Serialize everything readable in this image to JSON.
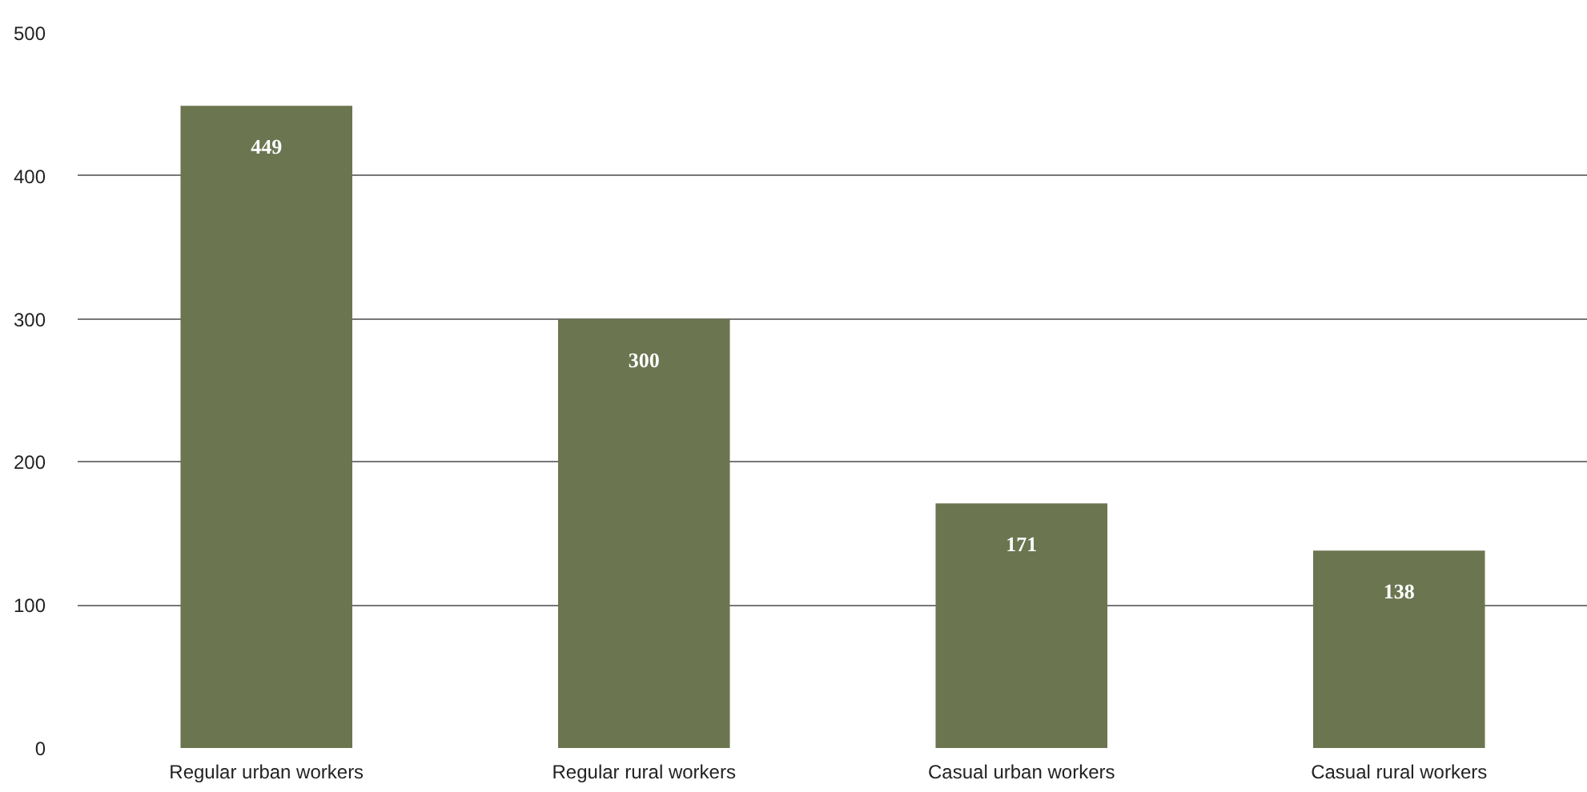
{
  "chart_data": {
    "type": "bar",
    "categories": [
      "Regular urban workers",
      "Regular rural workers",
      "Casual urban workers",
      "Casual rural workers"
    ],
    "values": [
      449,
      300,
      171,
      138
    ],
    "color": "#6b7550",
    "ylim": [
      0,
      500
    ],
    "yticks": [
      0,
      100,
      200,
      300,
      400,
      500
    ],
    "grid": "y",
    "data_labels": true
  }
}
